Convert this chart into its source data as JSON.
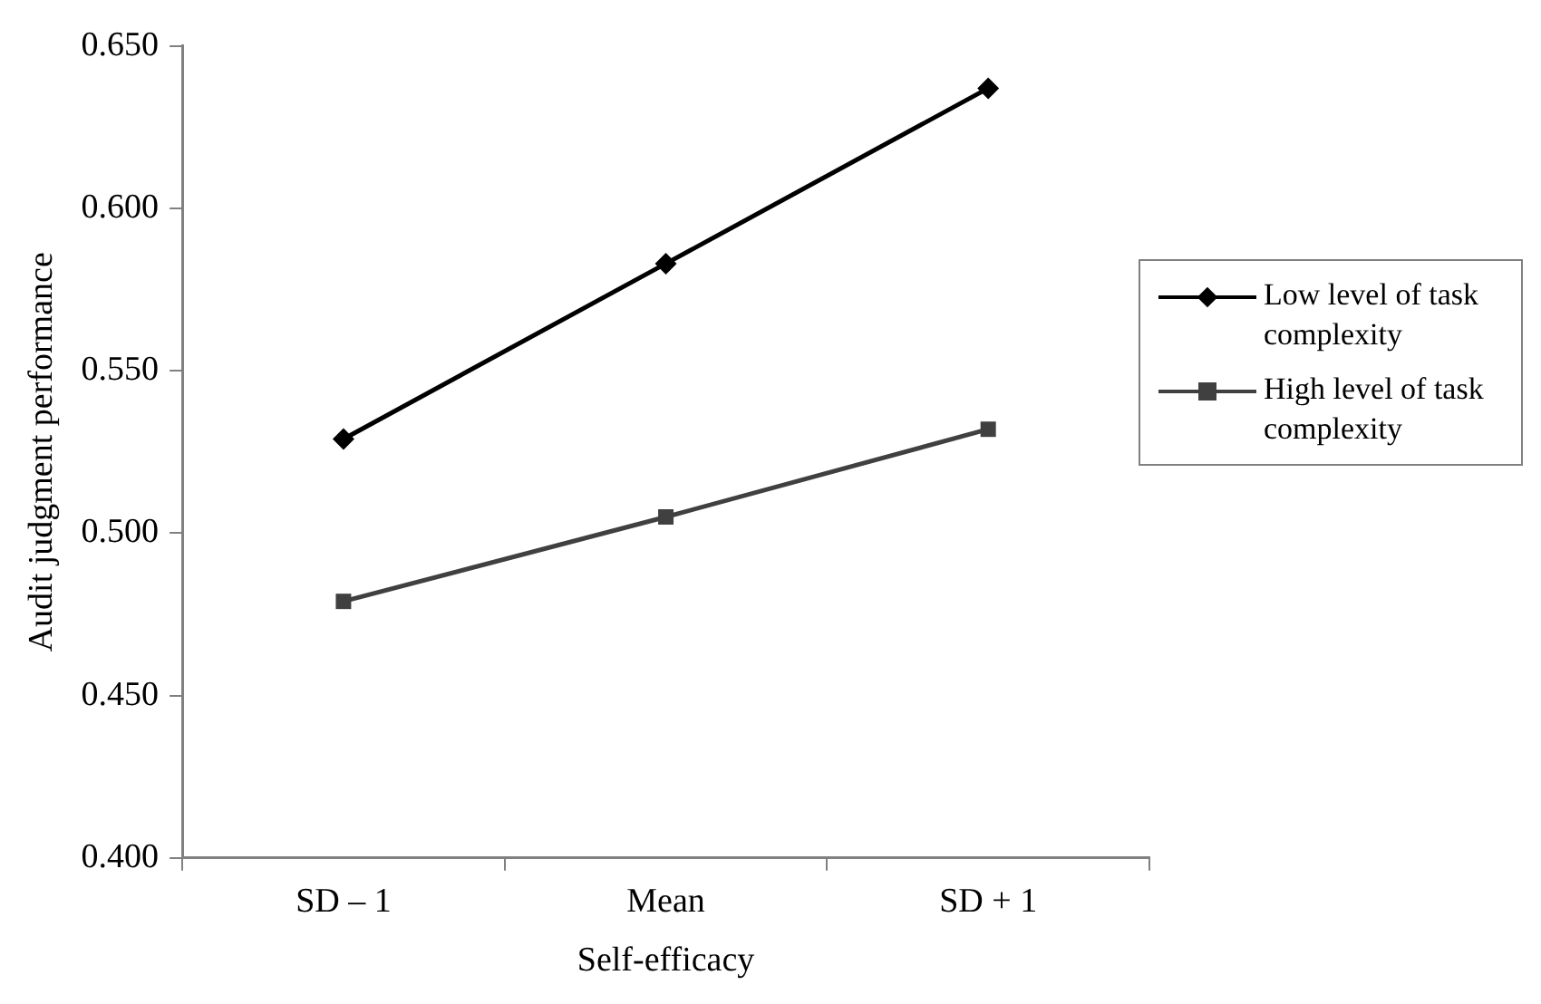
{
  "chart_data": {
    "type": "line",
    "xlabel": "Self-efficacy",
    "ylabel": "Audit judgment performance",
    "categories": [
      "SD – 1",
      "Mean",
      "SD + 1"
    ],
    "series": [
      {
        "name": "Low level of task complexity",
        "color": "#000000",
        "marker": "diamond",
        "values": [
          0.529,
          0.583,
          0.637
        ]
      },
      {
        "name": "High level of task complexity",
        "color": "#404040",
        "marker": "square",
        "values": [
          0.479,
          0.505,
          0.532
        ]
      }
    ],
    "ylim": [
      0.4,
      0.65
    ],
    "yticks": [
      {
        "value": 0.4,
        "label": "0.400"
      },
      {
        "value": 0.45,
        "label": "0.450"
      },
      {
        "value": 0.5,
        "label": "0.500"
      },
      {
        "value": 0.55,
        "label": "0.550"
      },
      {
        "value": 0.6,
        "label": "0.600"
      },
      {
        "value": 0.65,
        "label": "0.650"
      }
    ],
    "grid": false,
    "legend": "right"
  }
}
